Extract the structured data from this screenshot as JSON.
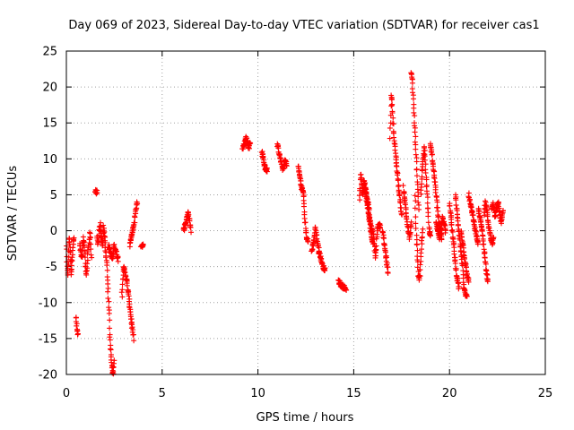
{
  "chart_data": {
    "type": "scatter",
    "title": "Day 069 of 2023, Sidereal Day-to-day VTEC variation (SDTVAR) for receiver cas1",
    "xlabel": "GPS time / hours",
    "ylabel": "SDTVAR / TECUs",
    "xlim": [
      0,
      25
    ],
    "ylim": [
      -20,
      25
    ],
    "xticks": [
      "0",
      "5",
      "10",
      "15",
      "20",
      "25"
    ],
    "yticks": [
      "25",
      "20",
      "15",
      "10",
      "5",
      "0",
      "-5",
      "-10",
      "-15",
      "-20"
    ],
    "grid": true,
    "marker": "+",
    "color": "#ff0000",
    "segments": [
      {
        "x0": 0.0,
        "x1": 0.15,
        "y": [
          -2,
          -5,
          -6,
          -4,
          -1
        ]
      },
      {
        "x0": 0.15,
        "x1": 0.4,
        "y": [
          -1,
          -3,
          -6,
          -4,
          -2,
          -1
        ]
      },
      {
        "x0": 0.5,
        "x1": 0.6,
        "y": [
          -12,
          -13,
          -14,
          -14.5
        ]
      },
      {
        "x0": 0.7,
        "x1": 1.3,
        "y": [
          -2,
          -3,
          -4,
          -1,
          -2,
          -5,
          -6,
          -3,
          -2,
          0,
          -4
        ]
      },
      {
        "x0": 1.5,
        "x1": 1.6,
        "y": [
          5.5,
          5.3
        ]
      },
      {
        "x0": 1.6,
        "x1": 2.0,
        "y": [
          -1,
          -2,
          0,
          1,
          -1,
          -2,
          0.5,
          -1
        ]
      },
      {
        "x0": 2.0,
        "x1": 2.5,
        "y": [
          -1,
          -3,
          -5,
          -8,
          -11,
          -15,
          -17,
          -19,
          -20,
          -18
        ]
      },
      {
        "x0": 2.2,
        "x1": 2.7,
        "y": [
          -2,
          -3,
          -4,
          -2,
          -3,
          -4
        ]
      },
      {
        "x0": 2.9,
        "x1": 3.5,
        "y": [
          -9,
          -5,
          -6,
          -7,
          -9,
          -11,
          -13,
          -15
        ]
      },
      {
        "x0": 3.3,
        "x1": 3.7,
        "y": [
          -2,
          -1,
          0,
          1,
          3,
          4
        ]
      },
      {
        "x0": 3.9,
        "x1": 4.0,
        "y": [
          -2,
          -2
        ]
      },
      {
        "x0": 6.1,
        "x1": 6.5,
        "y": [
          0,
          0.5,
          1,
          2,
          2.5,
          1.5,
          0
        ]
      },
      {
        "x0": 9.2,
        "x1": 9.6,
        "y": [
          11.5,
          12,
          12.5,
          13,
          12,
          11.5,
          12.5
        ]
      },
      {
        "x0": 10.2,
        "x1": 10.5,
        "y": [
          11,
          10,
          9,
          8.5,
          8.5
        ]
      },
      {
        "x0": 11.0,
        "x1": 11.5,
        "y": [
          12,
          11,
          10,
          9,
          8.5,
          10,
          9
        ]
      },
      {
        "x0": 12.1,
        "x1": 12.4,
        "y": [
          9,
          8,
          7,
          6,
          5.5,
          5
        ]
      },
      {
        "x0": 12.4,
        "x1": 12.6,
        "y": [
          4,
          2,
          0,
          -1,
          -1.5
        ]
      },
      {
        "x0": 12.8,
        "x1": 13.2,
        "y": [
          -3,
          -2,
          -1,
          0.5,
          -1,
          -2,
          -3
        ]
      },
      {
        "x0": 13.2,
        "x1": 13.5,
        "y": [
          -3,
          -4,
          -5,
          -5.5
        ]
      },
      {
        "x0": 14.2,
        "x1": 14.6,
        "y": [
          -7,
          -7.5,
          -7.8,
          -8
        ]
      },
      {
        "x0": 15.3,
        "x1": 15.8,
        "y": [
          4,
          8,
          6,
          5,
          7,
          6,
          5,
          4,
          3
        ]
      },
      {
        "x0": 15.5,
        "x1": 16.0,
        "y": [
          7,
          6,
          5,
          4,
          3,
          2,
          0,
          -1,
          -2
        ]
      },
      {
        "x0": 15.8,
        "x1": 16.4,
        "y": [
          2,
          1,
          0,
          -1,
          -4,
          0,
          1,
          0.5
        ]
      },
      {
        "x0": 16.5,
        "x1": 16.8,
        "y": [
          0,
          -2,
          -4,
          -6
        ]
      },
      {
        "x0": 16.9,
        "x1": 17.2,
        "y": [
          13,
          19,
          17,
          14,
          12,
          10
        ]
      },
      {
        "x0": 17.2,
        "x1": 17.5,
        "y": [
          10,
          8,
          6,
          4,
          2
        ]
      },
      {
        "x0": 17.6,
        "x1": 18.0,
        "y": [
          6,
          4,
          2,
          0,
          -1,
          1
        ]
      },
      {
        "x0": 18.0,
        "x1": 18.4,
        "y": [
          22,
          21,
          18,
          15,
          12,
          9,
          6,
          3
        ]
      },
      {
        "x0": 18.2,
        "x1": 18.6,
        "y": [
          5,
          0,
          -3,
          -6,
          -7,
          -5,
          -2,
          0
        ]
      },
      {
        "x0": 18.5,
        "x1": 19.0,
        "y": [
          5,
          8,
          10,
          12,
          9,
          6,
          3,
          0,
          -1
        ]
      },
      {
        "x0": 19.0,
        "x1": 19.6,
        "y": [
          12,
          11,
          9,
          7,
          5,
          3,
          1,
          0,
          -1
        ]
      },
      {
        "x0": 19.3,
        "x1": 19.8,
        "y": [
          1,
          0,
          -1,
          0,
          2,
          1,
          0
        ]
      },
      {
        "x0": 20.0,
        "x1": 20.5,
        "y": [
          4,
          2,
          0,
          -2,
          -4,
          -6,
          -7,
          -8
        ]
      },
      {
        "x0": 20.3,
        "x1": 20.9,
        "y": [
          5,
          3,
          1,
          -1,
          -3,
          -5,
          -8,
          -9,
          -9
        ]
      },
      {
        "x0": 20.6,
        "x1": 21.0,
        "y": [
          0,
          -2,
          -4,
          -6,
          -7
        ]
      },
      {
        "x0": 21.0,
        "x1": 21.5,
        "y": [
          5,
          4,
          3,
          2,
          1,
          0,
          -1,
          -2
        ]
      },
      {
        "x0": 21.5,
        "x1": 22.0,
        "y": [
          3,
          2,
          1,
          0,
          -2,
          -4,
          -6,
          -7
        ]
      },
      {
        "x0": 21.8,
        "x1": 22.3,
        "y": [
          2,
          4,
          3,
          1,
          0,
          -1,
          -2,
          -1
        ]
      },
      {
        "x0": 22.2,
        "x1": 22.8,
        "y": [
          3,
          4,
          2,
          3,
          4,
          2,
          1,
          3
        ]
      }
    ]
  }
}
